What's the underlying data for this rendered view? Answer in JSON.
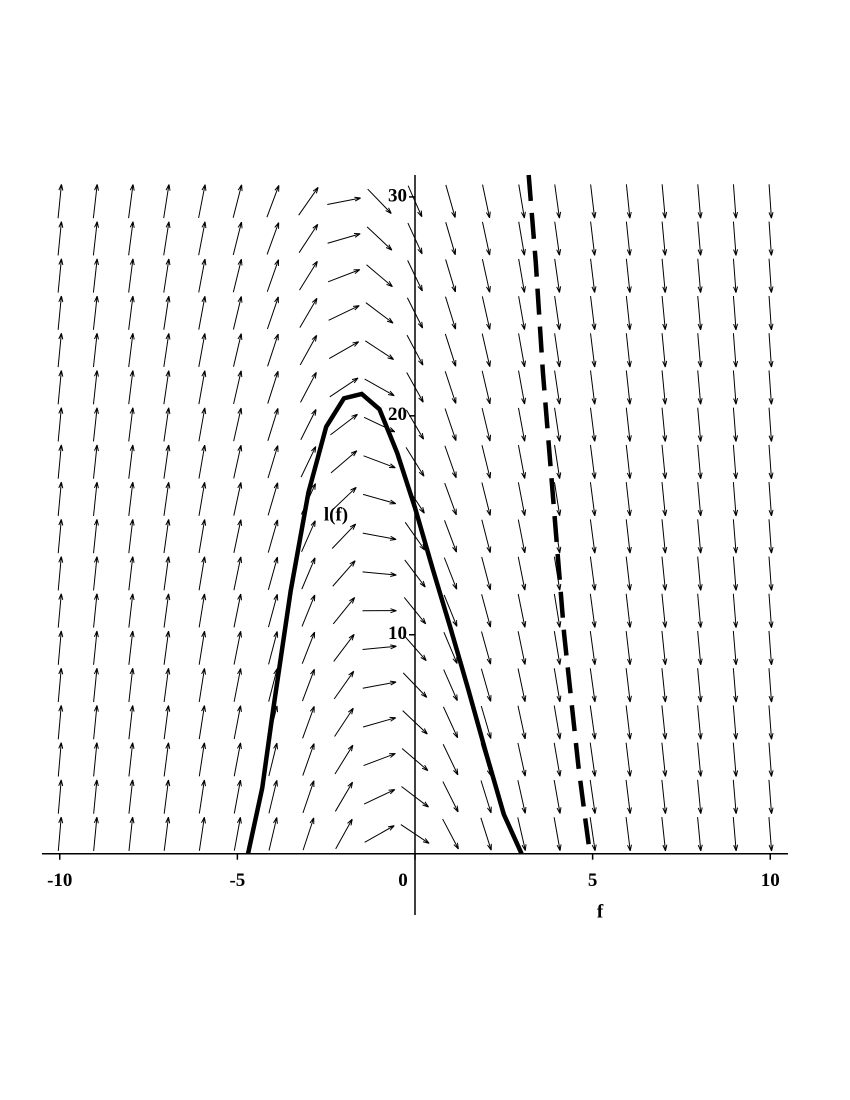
{
  "chart_data": {
    "type": "line",
    "xlabel": "f",
    "ylabel": "l(f)",
    "xlim": [
      -10.5,
      10.5
    ],
    "ylim": [
      -2.8,
      31
    ],
    "xticks": [
      -10,
      -5,
      0,
      5,
      10
    ],
    "yticks": [
      10,
      20,
      30
    ],
    "series": [
      {
        "color": "#000000",
        "dash": false,
        "x": [
          -4.7,
          -4.3,
          -4,
          -3.5,
          -3,
          -2.5,
          -2,
          -1.5,
          -1,
          -0.5,
          0,
          0.5,
          1,
          1.5,
          2,
          2.5,
          3
        ],
        "values": [
          0,
          3,
          6.5,
          12,
          16.5,
          19.5,
          20.8,
          21,
          20.3,
          18.3,
          15.8,
          13,
          10.3,
          7.5,
          4.6,
          1.8,
          0
        ]
      },
      {
        "color": "#000000",
        "dash": true,
        "x": [
          3.2,
          3.4,
          3.6,
          3.8,
          4,
          4.2,
          4.4,
          4.6,
          4.8,
          4.9
        ],
        "values": [
          31,
          27,
          22,
          18,
          14,
          10,
          7,
          4,
          1.5,
          0.3
        ]
      }
    ]
  }
}
